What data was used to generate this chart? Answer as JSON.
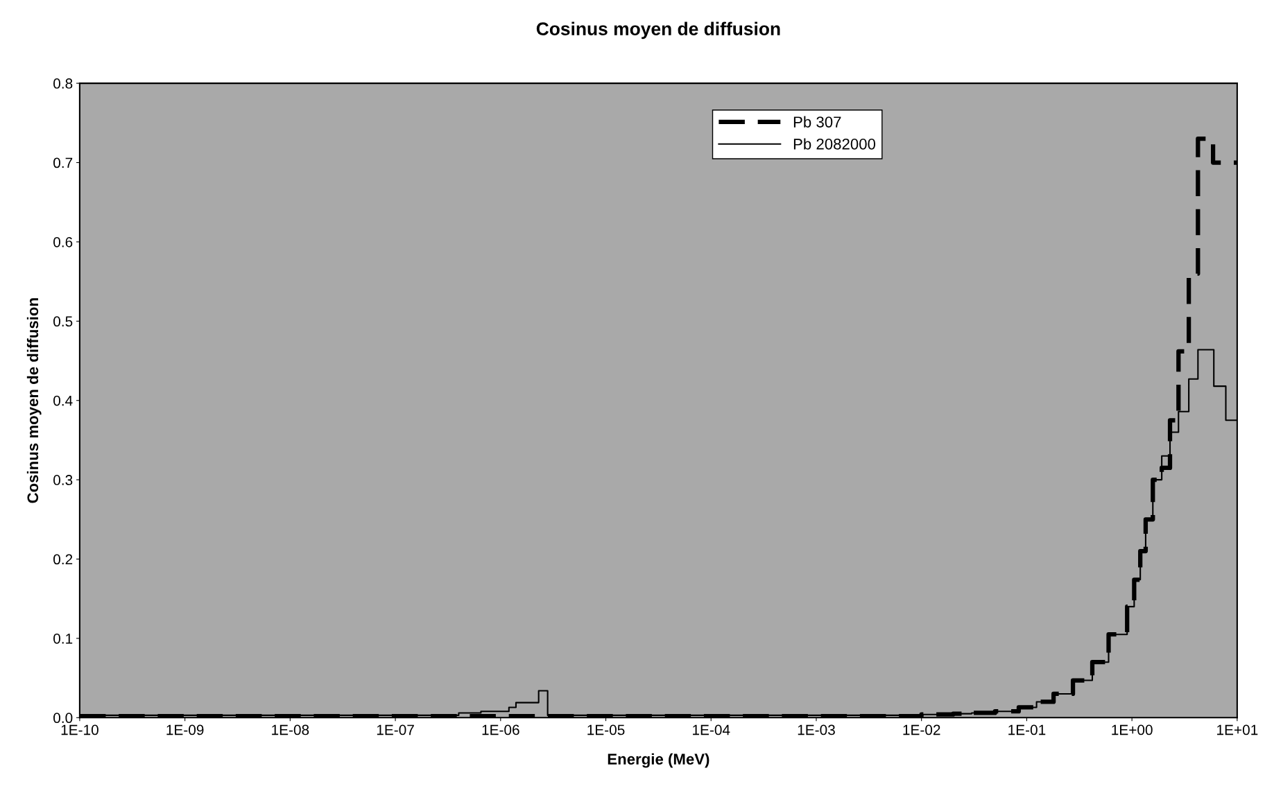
{
  "chart_data": {
    "type": "step",
    "title": "Cosinus moyen de diffusion",
    "xlabel": "Energie (MeV)",
    "ylabel": "Cosinus moyen de diffusion",
    "log": "x",
    "xlim": [
      1e-10,
      10
    ],
    "ylim": [
      0,
      0.8
    ],
    "xticks": [
      {
        "value": 1e-10,
        "label": "1E-10"
      },
      {
        "value": 1e-09,
        "label": "1E-09"
      },
      {
        "value": 1e-08,
        "label": "1E-08"
      },
      {
        "value": 1e-07,
        "label": "1E-07"
      },
      {
        "value": 1e-06,
        "label": "1E-06"
      },
      {
        "value": 1e-05,
        "label": "1E-05"
      },
      {
        "value": 0.0001,
        "label": "1E-04"
      },
      {
        "value": 0.001,
        "label": "1E-03"
      },
      {
        "value": 0.01,
        "label": "1E-02"
      },
      {
        "value": 0.1,
        "label": "1E-01"
      },
      {
        "value": 1,
        "label": "1E+00"
      },
      {
        "value": 10,
        "label": "1E+01"
      }
    ],
    "yticks": [
      {
        "value": 0,
        "label": "0.0"
      },
      0.1,
      0.2,
      0.3,
      0.4,
      0.5,
      0.6,
      0.7,
      0.8
    ],
    "grid": false,
    "legend": "top",
    "marker": "none",
    "series": [
      {
        "name": "Pb 307",
        "color": "#000000",
        "line_style": "dashed",
        "x": [
          1e-10,
          0.01,
          0.02,
          0.03,
          0.05,
          0.084,
          0.124,
          0.18,
          0.275,
          0.42,
          0.6,
          0.9,
          1.05,
          1.2,
          1.35,
          1.58,
          1.92,
          2.3,
          2.77,
          3.47,
          4.24,
          5.9,
          10
        ],
        "values": [
          0.002,
          0.004,
          0.005,
          0.006,
          0.008,
          0.013,
          0.02,
          0.03,
          0.047,
          0.07,
          0.105,
          0.14,
          0.174,
          0.21,
          0.25,
          0.3,
          0.315,
          0.375,
          0.462,
          0.56,
          0.73,
          0.7,
          0.7
        ]
      },
      {
        "name": "Pb 2082000",
        "color": "#000000",
        "line_style": "solid",
        "x": [
          1e-10,
          4e-07,
          6.5e-07,
          1.2e-06,
          1.4e-06,
          2.3e-06,
          2.8e-06,
          0.01,
          0.02,
          0.03,
          0.05,
          0.084,
          0.124,
          0.18,
          0.275,
          0.42,
          0.6,
          0.9,
          1.05,
          1.2,
          1.35,
          1.58,
          1.92,
          2.3,
          2.77,
          3.47,
          4.24,
          6.0,
          7.8,
          10
        ],
        "values": [
          0.003,
          0.006,
          0.008,
          0.013,
          0.019,
          0.034,
          0.003,
          0.004,
          0.005,
          0.006,
          0.008,
          0.013,
          0.02,
          0.03,
          0.047,
          0.07,
          0.105,
          0.14,
          0.174,
          0.21,
          0.25,
          0.3,
          0.33,
          0.36,
          0.386,
          0.427,
          0.464,
          0.418,
          0.375,
          0.375
        ]
      }
    ]
  }
}
